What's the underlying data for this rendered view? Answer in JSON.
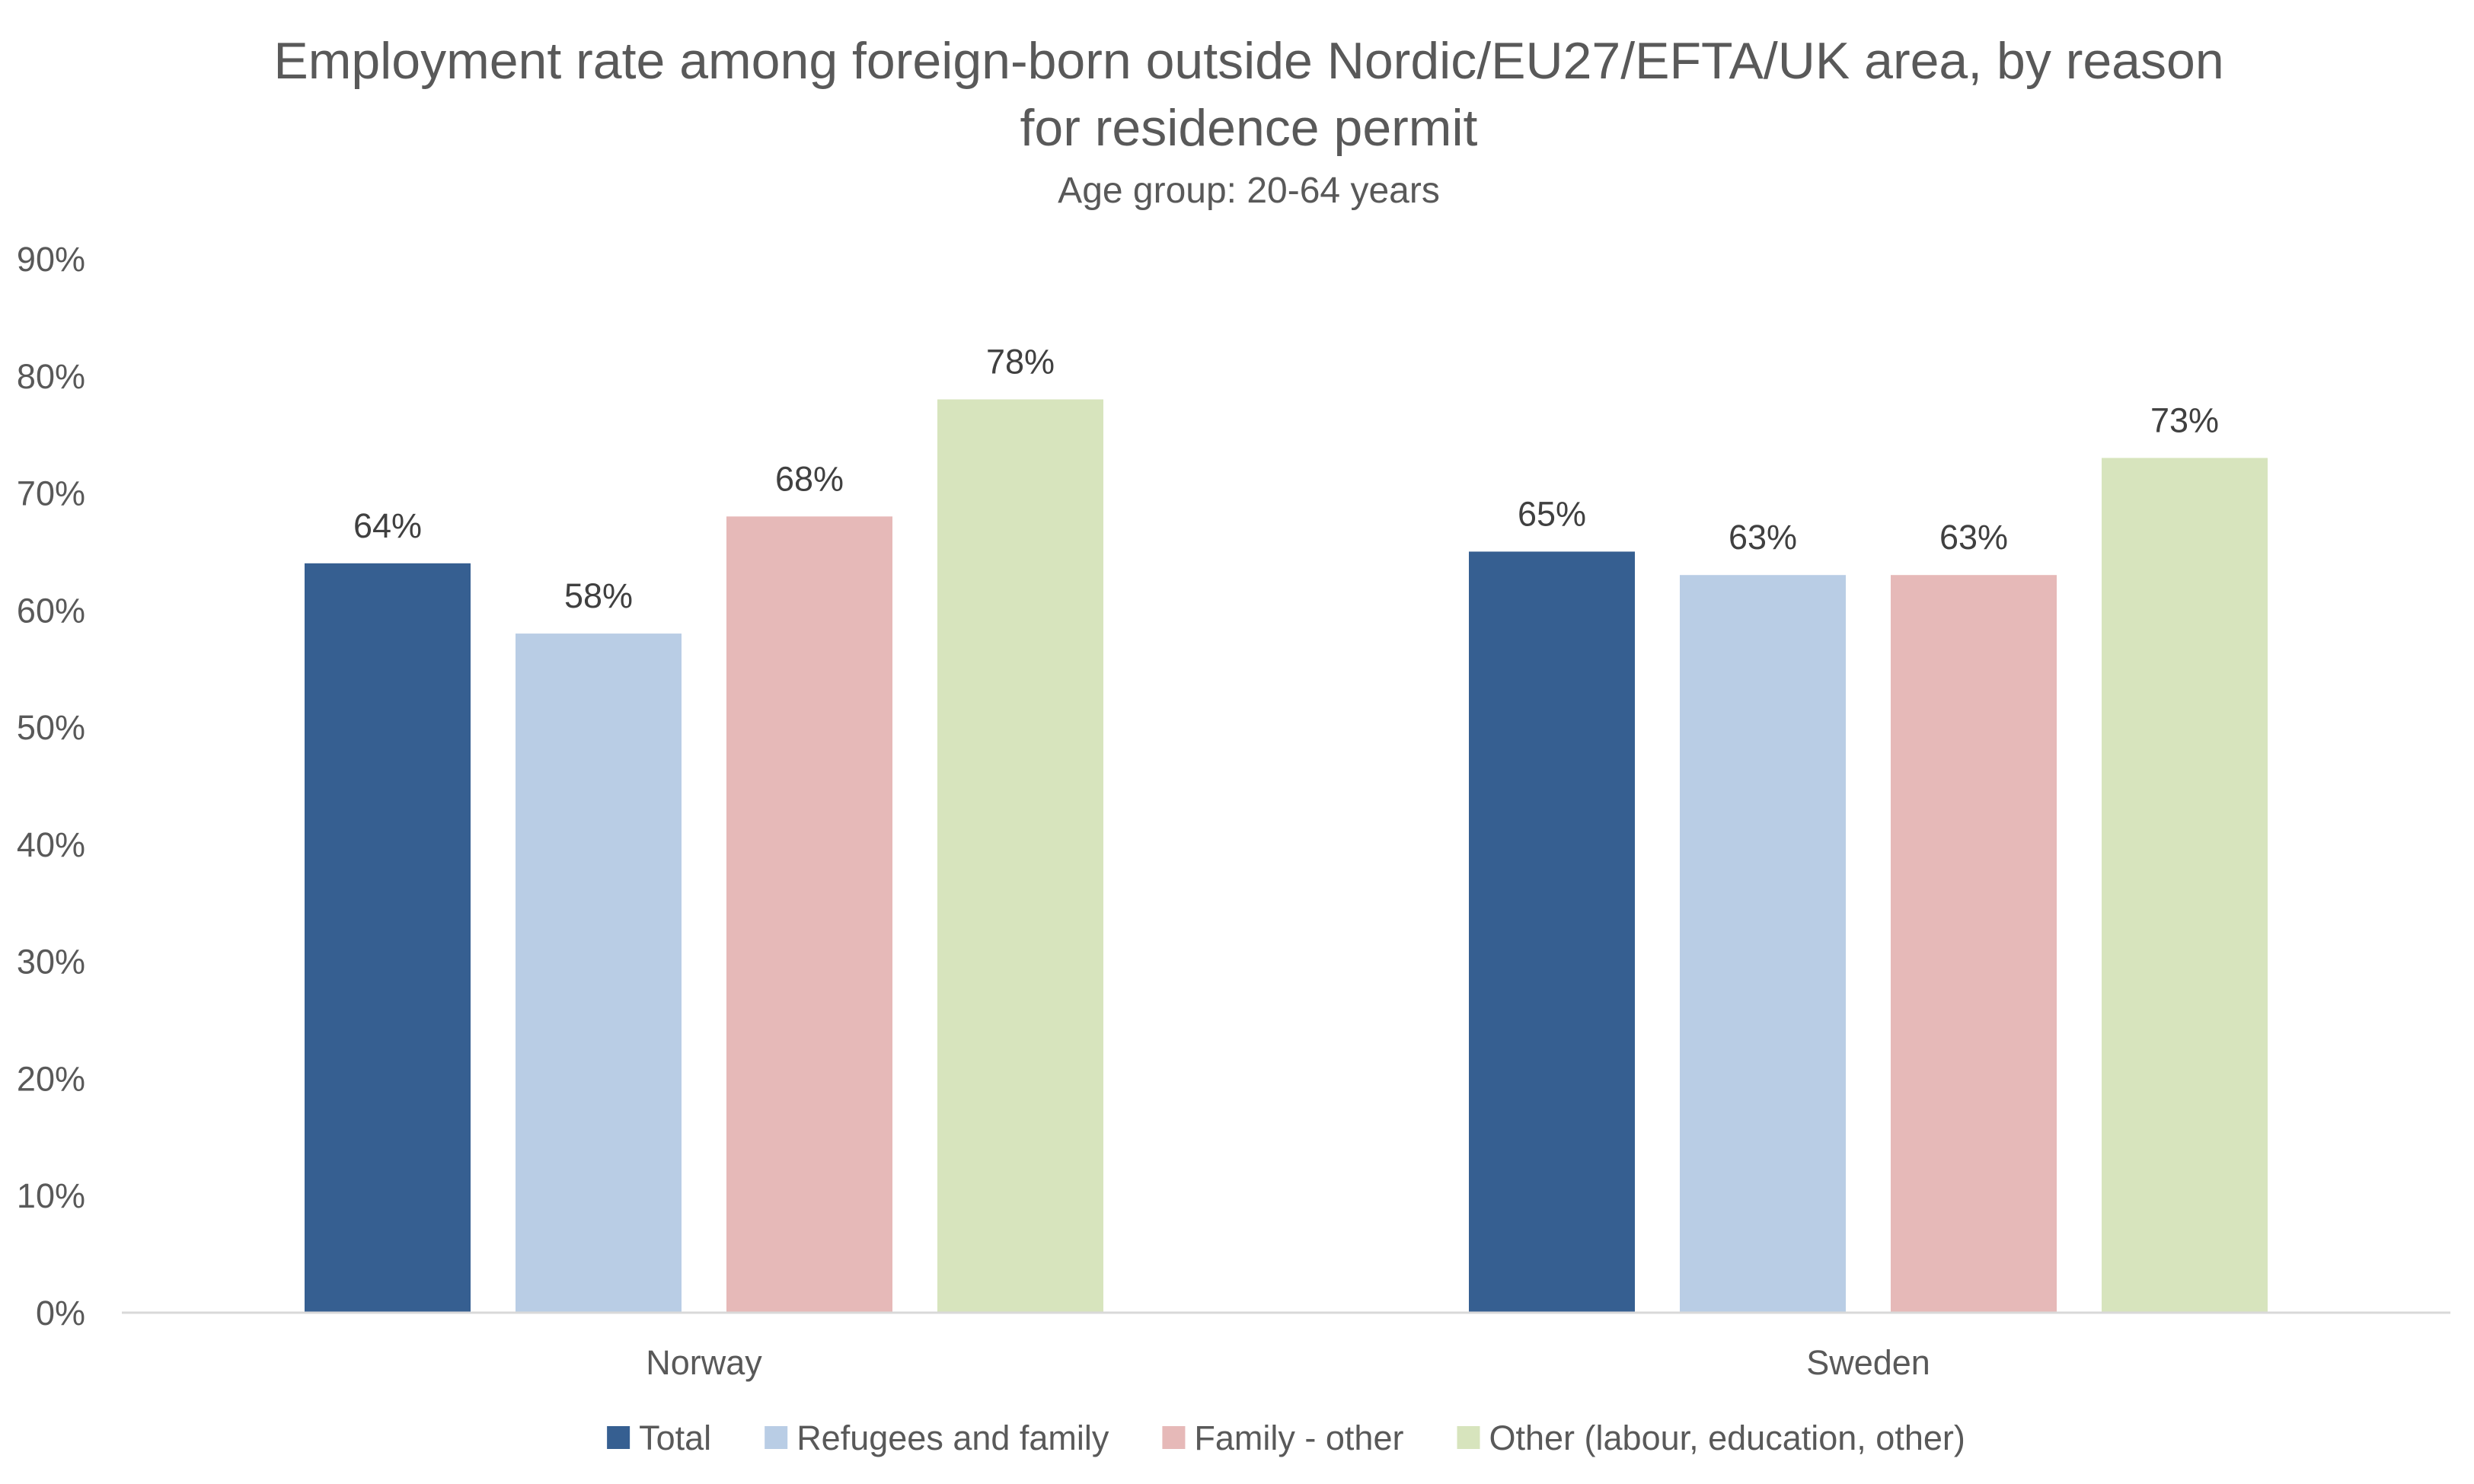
{
  "chart_data": {
    "type": "bar",
    "title_lines": [
      "Employment rate among foreign-born outside Nordic/EU27/EFTA/UK area, by reason",
      "for residence permit"
    ],
    "subtitle": "Age group: 20-64 years",
    "categories": [
      "Norway",
      "Sweden"
    ],
    "series": [
      {
        "name": "Total",
        "color": "#365F91",
        "values": [
          64,
          65
        ],
        "labels": [
          "64%",
          "65%"
        ]
      },
      {
        "name": "Refugees and family",
        "color": "#B9CDE5",
        "values": [
          58,
          63
        ],
        "labels": [
          "58%",
          "63%"
        ]
      },
      {
        "name": "Family - other",
        "color": "#E6B9B8",
        "values": [
          68,
          63
        ],
        "labels": [
          "68%",
          "63%"
        ]
      },
      {
        "name": "Other (labour, education, other)",
        "color": "#D7E4BD",
        "values": [
          78,
          73
        ],
        "labels": [
          "78%",
          "73%"
        ]
      }
    ],
    "ylim": [
      0,
      90
    ],
    "y_ticks": [
      "0%",
      "10%",
      "20%",
      "30%",
      "40%",
      "50%",
      "60%",
      "70%",
      "80%",
      "90%"
    ],
    "grid": false,
    "legend_position": "bottom",
    "axis_color": "#D9D9D9"
  }
}
